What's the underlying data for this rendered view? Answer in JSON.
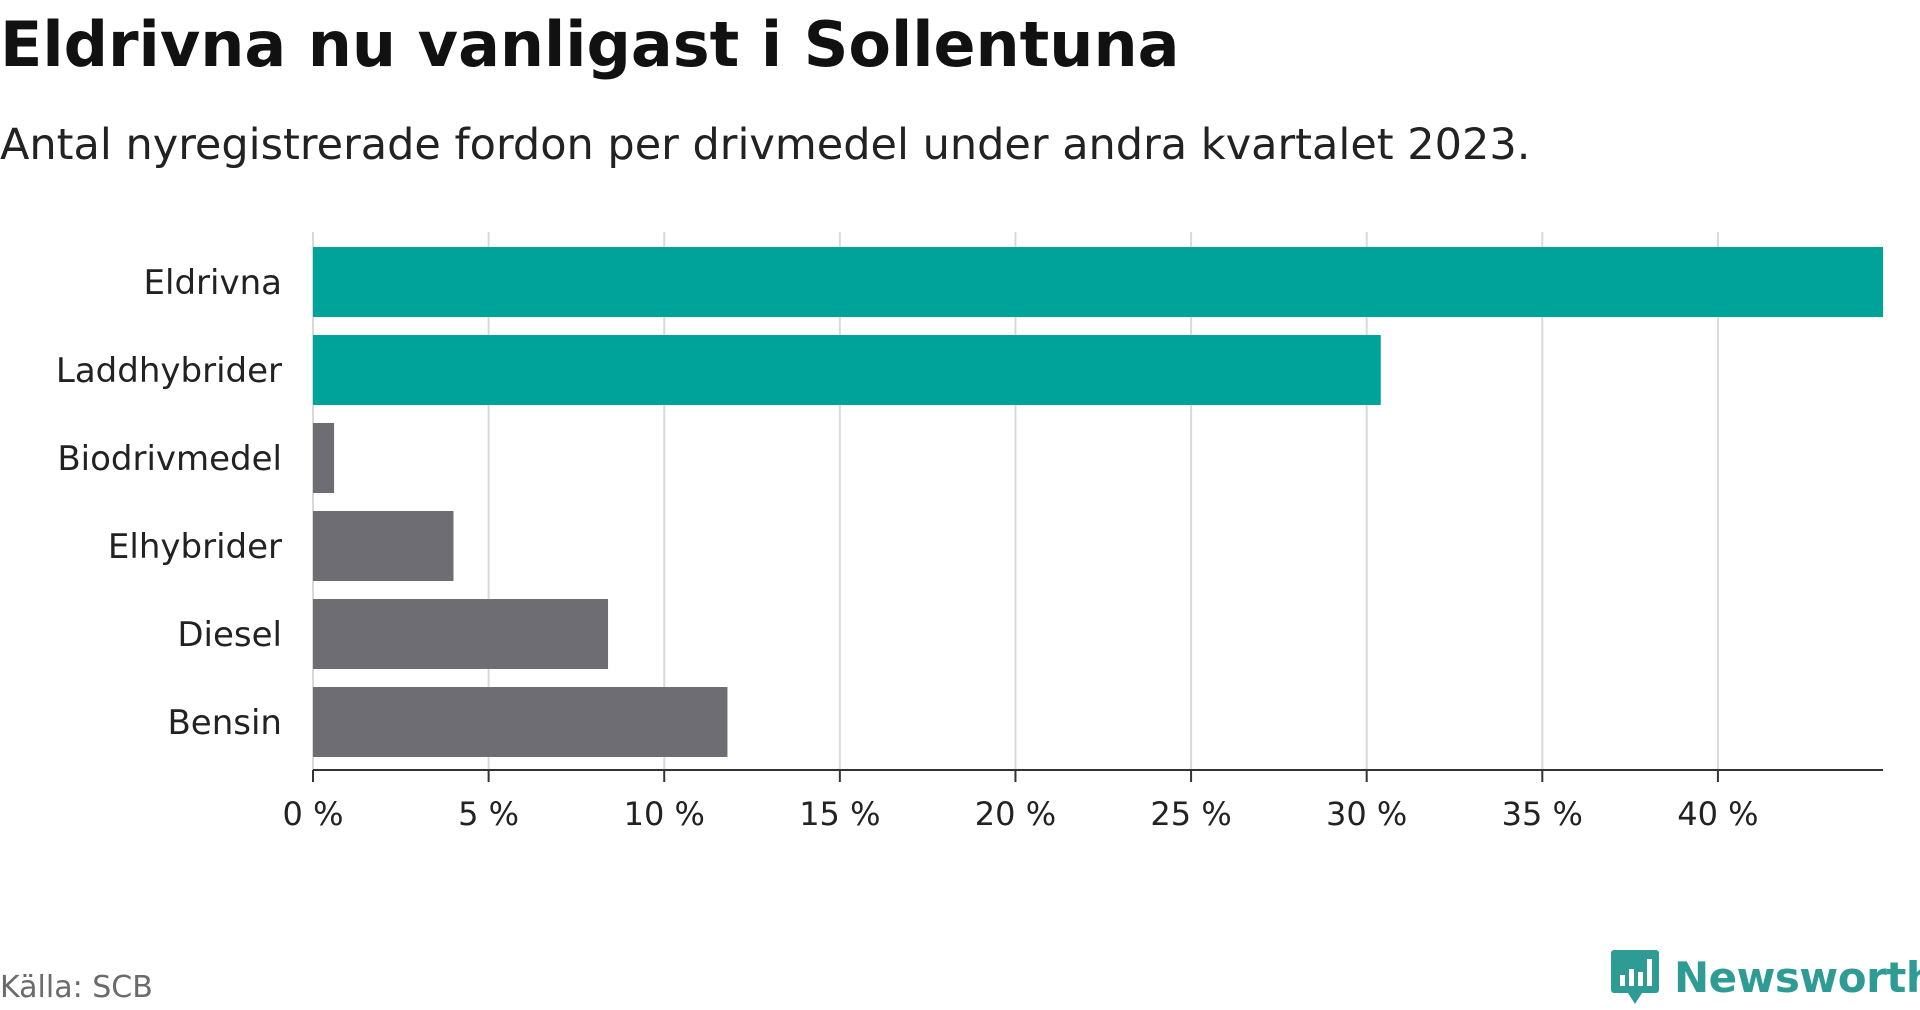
{
  "header": {
    "title": "Eldrivna nu vanligast i Sollentuna",
    "subtitle": "Antal nyregistrerade fordon per drivmedel under andra kvartalet 2023."
  },
  "footer": {
    "source": "Källa: SCB",
    "brand": "Newsworthy",
    "brand_icon": "newsworthy-logo-icon"
  },
  "colors": {
    "highlight": "#00a39a",
    "muted": "#6e6d74",
    "grid": "#d9d9d9",
    "axis": "#333333",
    "brand": "#2e9b94"
  },
  "chart_data": {
    "type": "bar",
    "orientation": "horizontal",
    "title": "Eldrivna nu vanligast i Sollentuna",
    "subtitle": "Antal nyregistrerade fordon per drivmedel under andra kvartalet 2023.",
    "xlabel": "",
    "ylabel": "",
    "unit": "%",
    "xlim": [
      0,
      44.7
    ],
    "ticks": [
      0,
      5,
      10,
      15,
      20,
      25,
      30,
      35,
      40
    ],
    "tick_labels": [
      "0 %",
      "5 %",
      "10 %",
      "15 %",
      "20 %",
      "25 %",
      "30 %",
      "35 %",
      "40 %"
    ],
    "grid": true,
    "legend": "none",
    "categories": [
      "Eldrivna",
      "Laddhybrider",
      "Biodrivmedel",
      "Elhybrider",
      "Diesel",
      "Bensin"
    ],
    "values": [
      44.7,
      30.4,
      0.6,
      4.0,
      8.4,
      11.8
    ],
    "highlighted": [
      true,
      true,
      false,
      false,
      false,
      false
    ]
  }
}
